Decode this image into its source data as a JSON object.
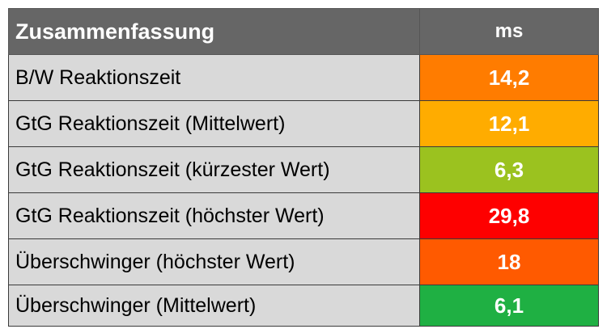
{
  "header": {
    "title": "Zusammenfassung",
    "unit": "ms"
  },
  "rows": [
    {
      "label": "B/W Reaktionszeit",
      "value": "14,2",
      "color": "#ff7c00"
    },
    {
      "label": "GtG Reaktionszeit (Mittelwert)",
      "value": "12,1",
      "color": "#ffac00"
    },
    {
      "label": "GtG Reaktionszeit (kürzester Wert)",
      "value": "6,3",
      "color": "#9bc21f"
    },
    {
      "label": "GtG Reaktionszeit (höchster Wert)",
      "value": "29,8",
      "color": "#fe0000"
    },
    {
      "label": "Überschwinger (höchster Wert)",
      "value": "18",
      "color": "#ff5a00"
    },
    {
      "label": "Überschwinger (Mittelwert)",
      "value": "6,1",
      "color": "#1fb043"
    }
  ]
}
